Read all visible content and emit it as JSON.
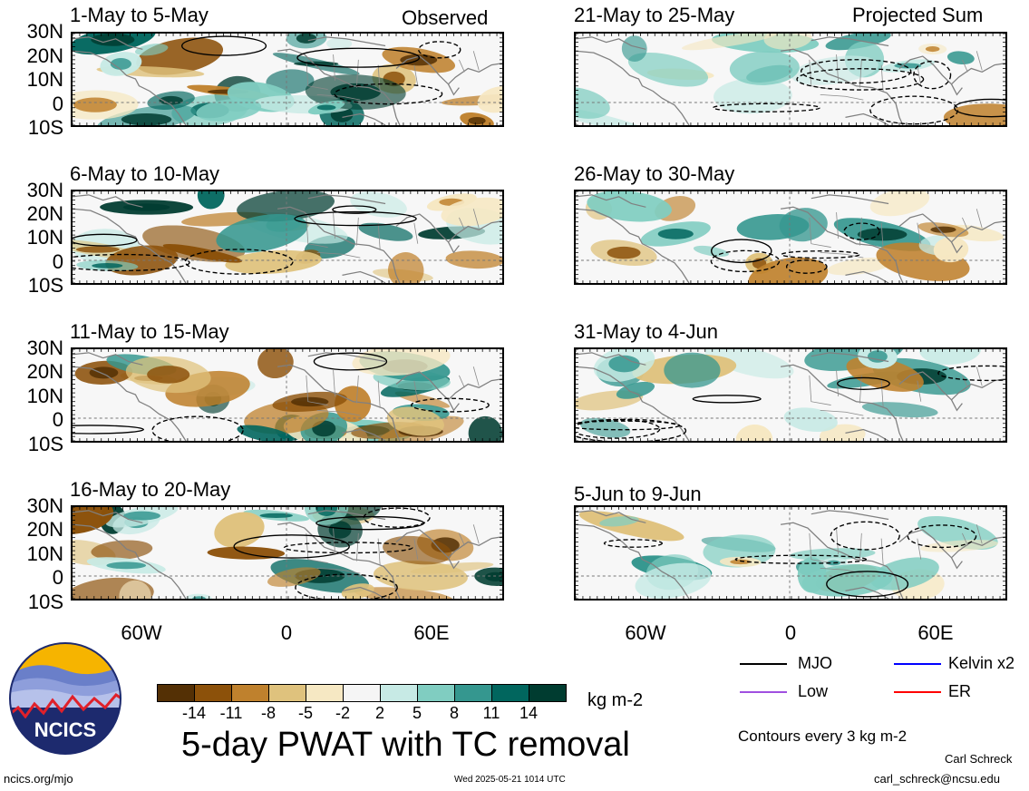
{
  "header": {
    "observed_label": "Observed",
    "projected_label": "Projected Sum"
  },
  "panels": [
    {
      "title": "1-May to 5-May",
      "column": "observed"
    },
    {
      "title": "6-May to 10-May",
      "column": "observed"
    },
    {
      "title": "11-May to 15-May",
      "column": "observed"
    },
    {
      "title": "16-May to 20-May",
      "column": "observed"
    },
    {
      "title": "21-May to 25-May",
      "column": "projected"
    },
    {
      "title": "26-May to 30-May",
      "column": "projected"
    },
    {
      "title": "31-May to 4-Jun",
      "column": "projected"
    },
    {
      "title": "5-Jun to 9-Jun",
      "column": "projected"
    }
  ],
  "axes": {
    "lat_labels": [
      "30N",
      "20N",
      "10N",
      "0",
      "10S"
    ],
    "lon_labels": [
      "60W",
      "0",
      "60E"
    ]
  },
  "colorbar": {
    "ticks": [
      "-14",
      "-11",
      "-8",
      "-5",
      "-2",
      "2",
      "5",
      "8",
      "11",
      "14"
    ],
    "colors": [
      "#543005",
      "#8c510a",
      "#bf812d",
      "#dfc27d",
      "#f6e8c3",
      "#f5f5f5",
      "#c7eae5",
      "#80cdc1",
      "#35978f",
      "#01665e",
      "#003c30"
    ],
    "units": "kg m-2"
  },
  "title": "5-day PWAT with TC removal",
  "legend": {
    "items": [
      {
        "label": "MJO",
        "color": "#000000"
      },
      {
        "label": "Kelvin x2",
        "color": "#0000ff"
      },
      {
        "label": "Low",
        "color": "#a050e0"
      },
      {
        "label": "ER",
        "color": "#ff0000"
      }
    ],
    "contour_note": "Contours every 3 kg m-2"
  },
  "logo": {
    "text": "NCICS"
  },
  "footer": {
    "url": "ncics.org/mjo",
    "timestamp": "Wed 2025-05-21 1014 UTC",
    "author": "Carl Schreck",
    "email": "carl_schreck@ncsu.edu"
  }
}
